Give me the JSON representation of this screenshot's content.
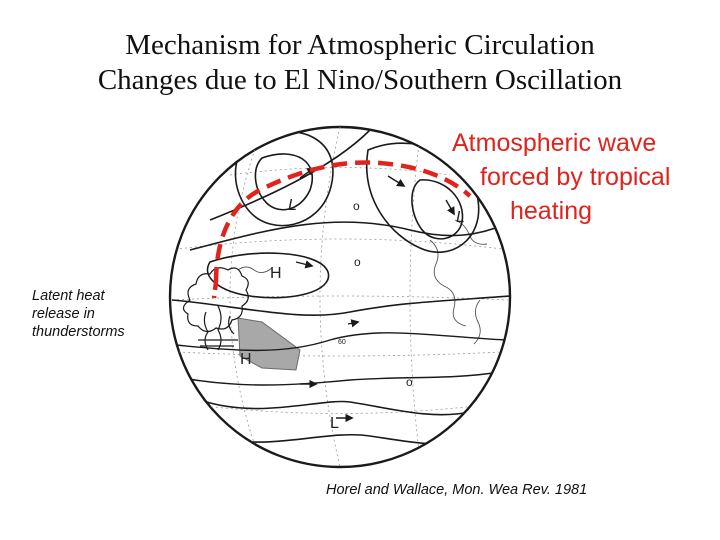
{
  "title": {
    "line1": "Mechanism for Atmospheric Circulation",
    "line2": "Changes due to El Nino/Southern Oscillation"
  },
  "wave_label": {
    "line1": "Atmospheric wave",
    "line2": "forced by tropical",
    "line3": "heating"
  },
  "latent_label": {
    "line1": "Latent heat",
    "line2": "release in",
    "line3": "thunderstorms"
  },
  "credit": "Horel and Wallace, Mon. Wea Rev. 1981",
  "globe_symbols": {
    "low_north_west": "L",
    "low_north_east": "L",
    "high_mid": "H",
    "high_tropics": "H",
    "low_south": "L",
    "zero_north": "o",
    "zero_mid": "o",
    "zero_south": "o",
    "tropical_level": "60"
  },
  "colors": {
    "wave_path": "#e0231d",
    "heating_region": "#a8a8a8",
    "contour": "#1a1a1a"
  }
}
